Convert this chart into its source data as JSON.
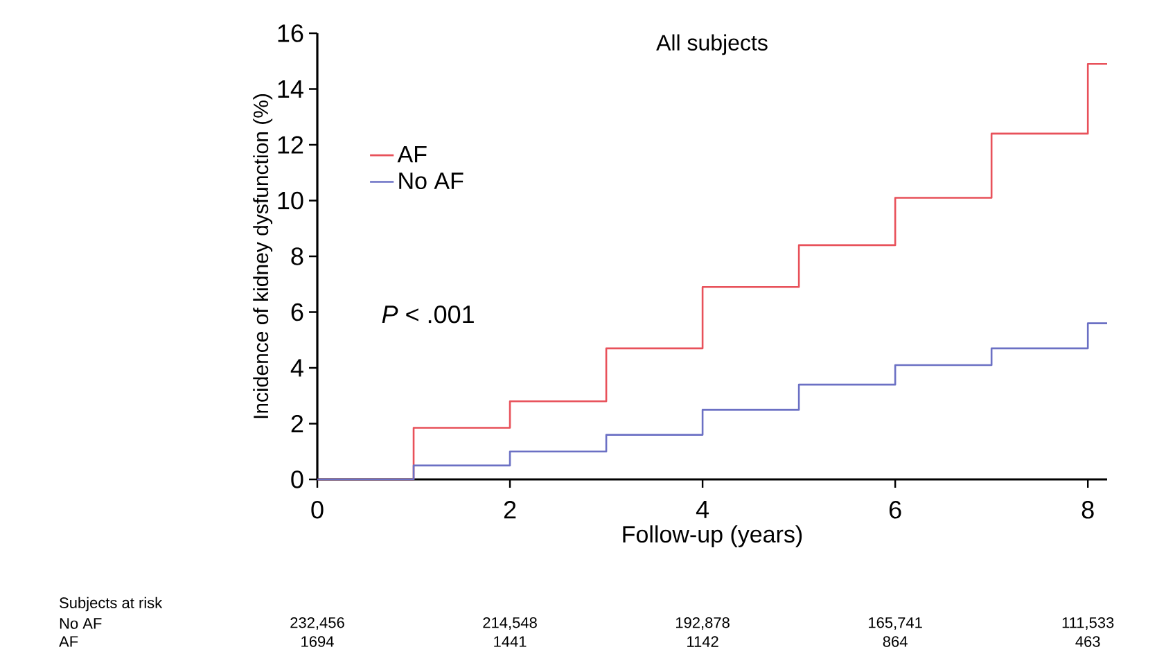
{
  "chart_data": {
    "type": "step",
    "title": "All subjects",
    "xlabel": "Follow-up (years)",
    "ylabel": "Incidence of kidney dysfunction (%)",
    "series": [
      {
        "name": "AF",
        "color": "#e8515a",
        "x": [
          0,
          1,
          2,
          3,
          4,
          5,
          6,
          7,
          8,
          8.2
        ],
        "values": [
          0,
          1.85,
          2.8,
          4.7,
          6.9,
          8.4,
          10.1,
          12.4,
          14.9,
          14.9
        ]
      },
      {
        "name": "No AF",
        "color": "#6b70c4",
        "x": [
          0,
          1,
          2,
          3,
          4,
          5,
          6,
          7,
          8,
          8.2
        ],
        "values": [
          0,
          0.5,
          1.0,
          1.6,
          2.5,
          3.4,
          4.1,
          4.7,
          5.6,
          5.6
        ]
      }
    ],
    "xlim": [
      0,
      8.2
    ],
    "xticks": [
      0,
      2,
      4,
      6,
      8
    ],
    "ylim": [
      0,
      16
    ],
    "yticks": [
      0,
      2,
      4,
      6,
      8,
      10,
      12,
      14,
      16
    ],
    "legend": "top left",
    "grid": false,
    "annotations": [
      "*P* < .001",
      "Subjects at risk",
      "No AF",
      "232,456",
      "214,548",
      "192,878",
      "165,741",
      "111,533",
      "AF",
      "1694",
      "1441",
      "1142",
      "864",
      "463"
    ]
  }
}
